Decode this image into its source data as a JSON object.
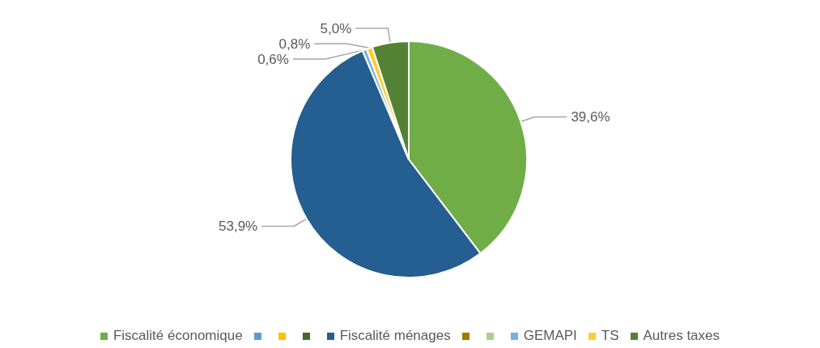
{
  "chart_data": {
    "type": "pie",
    "categories": [
      "Fiscalité économique",
      null,
      null,
      null,
      "Fiscalité ménages",
      null,
      null,
      "GEMAPI",
      "TS",
      "Autres taxes"
    ],
    "values": [
      39.6,
      0,
      0,
      0,
      53.9,
      0,
      0,
      0.6,
      0.8,
      5.0
    ],
    "value_labels": [
      "39,6%",
      null,
      null,
      null,
      "53,9%",
      null,
      null,
      "0,6%",
      "0,8%",
      "5,0%"
    ],
    "colors": [
      "#70ad47",
      "#5b9bd5",
      "#ffc000",
      "#43682b",
      "#255e91",
      "#9e7a00",
      "#a9d18e",
      "#7cafdd",
      "#ffcd33",
      "#548235"
    ],
    "legend": "bottom"
  }
}
